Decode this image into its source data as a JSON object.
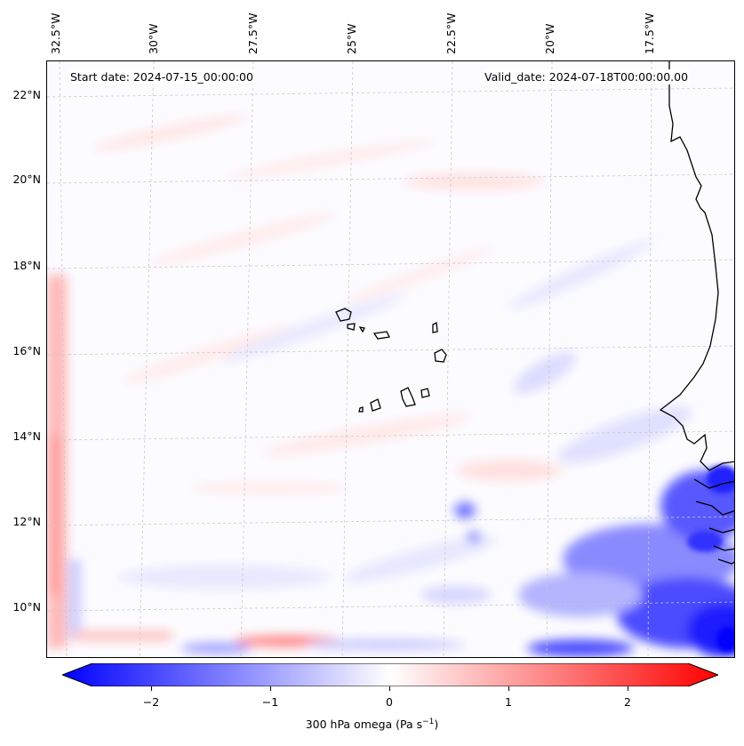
{
  "map": {
    "lon_labels": [
      "32.5°W",
      "30°W",
      "27.5°W",
      "25°W",
      "22.5°W",
      "20°W",
      "17.5°W"
    ],
    "lat_labels": [
      "22°N",
      "20°N",
      "18°N",
      "16°N",
      "14°N",
      "12°N",
      "10°N"
    ],
    "start_date": "Start date: 2024-07-15_00:00:00",
    "valid_date": "Valid_date: 2024-07-18T00:00:00.00",
    "field": "300 hPa omega",
    "coastline_color": "#000000",
    "gridline_color": "#c8c8c8"
  },
  "colorbar": {
    "label_main": "300 hPa omega (Pa s",
    "label_exp": "−1",
    "label_end": ")",
    "ticks": [
      "−2",
      "−1",
      "0",
      "1",
      "2"
    ],
    "tick_values": [
      -2,
      -1,
      0,
      1,
      2
    ],
    "range": [
      -2.5,
      2.5
    ],
    "colormap": "bwr",
    "min_color": "#0000ff",
    "mid_color": "#ffffff",
    "max_color": "#ff0000"
  }
}
